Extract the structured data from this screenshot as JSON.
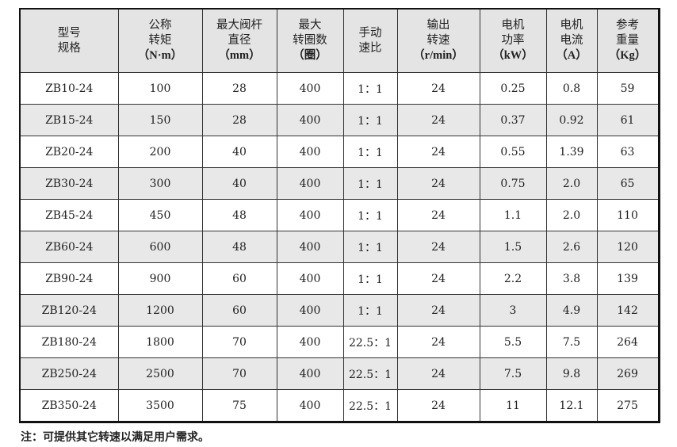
{
  "headers": [
    {
      "l1": "型号",
      "l2": "规格",
      "unit": ""
    },
    {
      "l1": "公称",
      "l2": "转矩",
      "unit": "（N·m）"
    },
    {
      "l1": "最大阀杆",
      "l2": "直径",
      "unit": "（mm）"
    },
    {
      "l1": "最大",
      "l2": "转圈数",
      "unit": "（圈）"
    },
    {
      "l1": "手动",
      "l2": "速比",
      "unit": ""
    },
    {
      "l1": "输出",
      "l2": "转速",
      "unit": "（r/min）"
    },
    {
      "l1": "电机",
      "l2": "功率",
      "unit": "（kW）"
    },
    {
      "l1": "电机",
      "l2": "电流",
      "unit": "（A）"
    },
    {
      "l1": "参考",
      "l2": "重量",
      "unit": "（Kg）"
    }
  ],
  "rows": [
    [
      "ZB10-24",
      "100",
      "28",
      "400",
      "1：1",
      "24",
      "0.25",
      "0.8",
      "59"
    ],
    [
      "ZB15-24",
      "150",
      "28",
      "400",
      "1：1",
      "24",
      "0.37",
      "0.92",
      "61"
    ],
    [
      "ZB20-24",
      "200",
      "40",
      "400",
      "1：1",
      "24",
      "0.55",
      "1.39",
      "63"
    ],
    [
      "ZB30-24",
      "300",
      "40",
      "400",
      "1：1",
      "24",
      "0.75",
      "2.0",
      "65"
    ],
    [
      "ZB45-24",
      "450",
      "48",
      "400",
      "1：1",
      "24",
      "1.1",
      "2.0",
      "110"
    ],
    [
      "ZB60-24",
      "600",
      "48",
      "400",
      "1：1",
      "24",
      "1.5",
      "2.6",
      "120"
    ],
    [
      "ZB90-24",
      "900",
      "60",
      "400",
      "1：1",
      "24",
      "2.2",
      "3.8",
      "139"
    ],
    [
      "ZB120-24",
      "1200",
      "60",
      "400",
      "1：1",
      "24",
      "3",
      "4.9",
      "142"
    ],
    [
      "ZB180-24",
      "1800",
      "70",
      "400",
      "22.5：1",
      "24",
      "5.5",
      "7.5",
      "264"
    ],
    [
      "ZB250-24",
      "2500",
      "70",
      "400",
      "22.5：1",
      "24",
      "7.5",
      "9.8",
      "269"
    ],
    [
      "ZB350-24",
      "3500",
      "75",
      "400",
      "22.5：1",
      "24",
      "11",
      "12.1",
      "275"
    ]
  ],
  "note": "注：可提供其它转速以满足用户需求。"
}
